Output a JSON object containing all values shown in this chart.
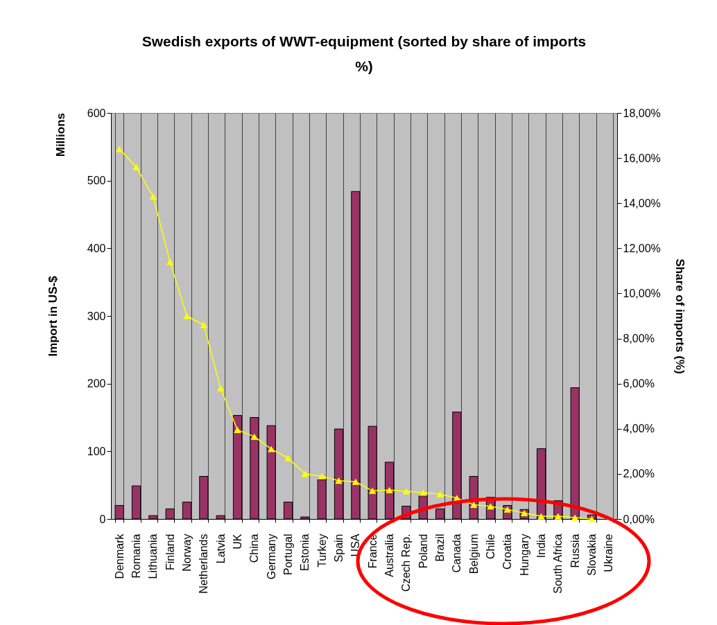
{
  "chart_data": {
    "type": "bar",
    "title": "Swedish exports of WWT-equipment (sorted by share of imports %)",
    "ylabel": "Import in US-$",
    "y2label": "Share of imports (%)",
    "annotations": [
      "Millions"
    ],
    "categories": [
      "Denmark",
      "Romania",
      "Lithuania",
      "Finland",
      "Norway",
      "Netherlands",
      "Latvia",
      "UK",
      "China",
      "Germany",
      "Portugal",
      "Estonia",
      "Turkey",
      "Spain",
      "USA",
      "France",
      "Australia",
      "Czech Rep.",
      "Poland",
      "Brazil",
      "Canada",
      "Belgium",
      "Chile",
      "Croatia",
      "Hungary",
      "India",
      "South Africa",
      "Russia",
      "Slovakia",
      "Ukraine"
    ],
    "series": [
      {
        "color": "#993366",
        "values": [
          20,
          49,
          5,
          15,
          25,
          63,
          5,
          153,
          150,
          138,
          25,
          3,
          58,
          133,
          484,
          137,
          84,
          19,
          34,
          15,
          158,
          63,
          32,
          20,
          14,
          104,
          27,
          194,
          6,
          null
        ]
      },
      {
        "type": "line",
        "axis": "y2",
        "color": "#ffff00",
        "marker": "triangle",
        "values": [
          16.4,
          15.6,
          14.3,
          11.4,
          9.0,
          8.6,
          5.8,
          3.95,
          3.65,
          3.1,
          2.7,
          2.0,
          1.9,
          1.7,
          1.65,
          1.25,
          1.28,
          1.23,
          1.17,
          1.1,
          0.93,
          0.63,
          0.56,
          0.42,
          0.26,
          0.12,
          0.12,
          0.06,
          0.0,
          null
        ]
      }
    ],
    "ylim": [
      0,
      600
    ],
    "yticks": [
      0,
      100,
      200,
      300,
      400,
      500,
      600
    ],
    "y2lim": [
      0,
      18
    ],
    "y2ticks": [
      {
        "value": 0,
        "label": "0,00%"
      },
      {
        "value": 2,
        "label": "2,00%"
      },
      {
        "value": 4,
        "label": "4,00%"
      },
      {
        "value": 6,
        "label": "6,00%"
      },
      {
        "value": 8,
        "label": "8,00%"
      },
      {
        "value": 10,
        "label": "10,00%"
      },
      {
        "value": 12,
        "label": "12,00%"
      },
      {
        "value": 14,
        "label": "14,00%"
      },
      {
        "value": 16,
        "label": "16,00%"
      },
      {
        "value": 18,
        "label": "18,00%"
      }
    ],
    "grid": "x"
  }
}
